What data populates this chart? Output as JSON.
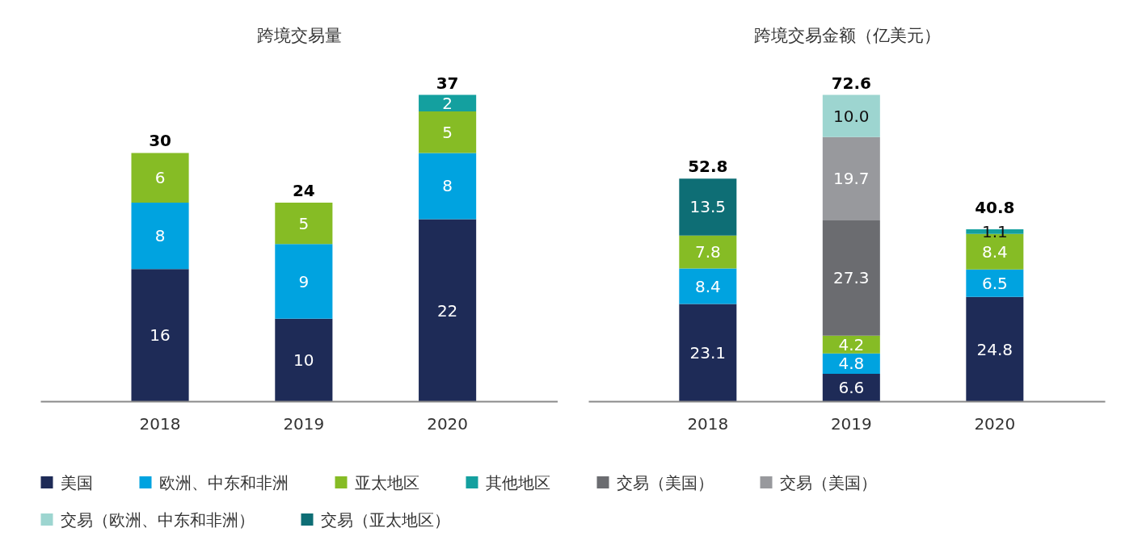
{
  "chart_data": [
    {
      "type": "bar",
      "title": "跨境交易量",
      "categories": [
        "2018",
        "2019",
        "2020"
      ],
      "stacked": true,
      "series": [
        {
          "name": "美国",
          "color": "#1e2b57",
          "values": [
            16,
            10,
            22
          ]
        },
        {
          "name": "欧洲、中东和非洲",
          "color": "#00a3e0",
          "values": [
            8,
            9,
            8
          ]
        },
        {
          "name": "亚太地区",
          "color": "#86bc25",
          "values": [
            6,
            5,
            5
          ]
        },
        {
          "name": "其他地区",
          "color": "#14a09f",
          "values": [
            null,
            null,
            2
          ]
        }
      ],
      "data_labels": true,
      "totals": [
        "30",
        "24",
        "37"
      ],
      "legend": "bottom"
    },
    {
      "type": "bar",
      "title": "跨境交易金额（亿美元）",
      "categories": [
        "2018",
        "2019",
        "2020"
      ],
      "stacked": true,
      "series": [
        {
          "name": "美国",
          "color": "#1e2b57",
          "values": [
            23.1,
            6.6,
            24.8
          ],
          "value_labels": [
            "23.1",
            "6.6",
            "24.8"
          ]
        },
        {
          "name": "欧洲、中东和非洲",
          "color": "#00a3e0",
          "values": [
            8.4,
            4.8,
            6.5
          ],
          "value_labels": [
            "8.4",
            "4.8",
            "6.5"
          ]
        },
        {
          "name": "亚太地区",
          "color": "#86bc25",
          "values": [
            7.8,
            4.2,
            8.4
          ],
          "value_labels": [
            "7.8",
            "4.2",
            "8.4"
          ]
        },
        {
          "name": "其他地区",
          "color": "#14a09f",
          "values": [
            null,
            null,
            1.1
          ],
          "value_labels": [
            null,
            null,
            "1.1"
          ]
        },
        {
          "name": "交易（美国）",
          "color": "#6b6c70",
          "values": [
            null,
            27.3,
            null
          ],
          "value_labels": [
            null,
            "27.3",
            null
          ]
        },
        {
          "name": "交易（美国）",
          "color": "#98999d",
          "values": [
            null,
            19.7,
            null
          ],
          "value_labels": [
            null,
            "19.7",
            null
          ]
        },
        {
          "name": "交易（欧洲、中东和非洲）",
          "color": "#9dd5d0",
          "values": [
            null,
            10.0,
            null
          ],
          "value_labels": [
            null,
            "10.0",
            null
          ]
        },
        {
          "name": "交易（亚太地区）",
          "color": "#0e6e75",
          "values": [
            13.5,
            null,
            null
          ],
          "value_labels": [
            "13.5",
            null,
            null
          ]
        }
      ],
      "totals": [
        "52.8",
        "72.6",
        "40.8"
      ],
      "legend": "bottom"
    }
  ]
}
